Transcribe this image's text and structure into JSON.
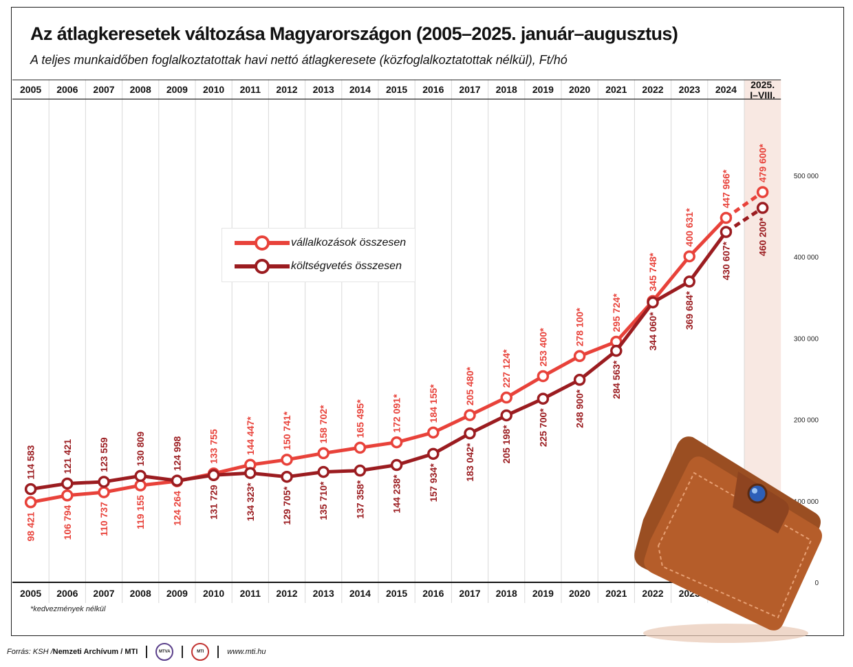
{
  "title": "Az átlagkeresetek változása Magyarországon (2005–2025. január–augusztus)",
  "subtitle": "A teljes munkaidőben foglalkoztatottak havi nettó átlagkeresete (közfoglalkoztatottak nélkül), Ft/hó",
  "footnote": "*kedvezmények nélkül",
  "footer": {
    "source_prefix": "Forrás: KSH / ",
    "source_bold": "Nemzeti Archívum / MTI",
    "logo1": "MTVA",
    "logo2": "MTI",
    "website": "www.mti.hu"
  },
  "legend": {
    "items": [
      "vállalkozások összesen",
      "költségvetés összesen"
    ]
  },
  "colors": {
    "business": "#e8423a",
    "budget": "#9b1c20",
    "highlight_band": "#f8e8e2"
  },
  "icons": [
    "wallet-illustration"
  ],
  "chart_data": {
    "type": "line",
    "categories": [
      "2005",
      "2006",
      "2007",
      "2008",
      "2009",
      "2010",
      "2011",
      "2012",
      "2013",
      "2014",
      "2015",
      "2016",
      "2017",
      "2018",
      "2019",
      "2020",
      "2021",
      "2022",
      "2023",
      "2024",
      "2025. I–VIII."
    ],
    "ylim": [
      0,
      500000
    ],
    "yticks": [
      "0",
      "100 000",
      "200 000",
      "300 000",
      "400 000",
      "500 000"
    ],
    "grid": "vertical",
    "legend_position": "upper-left",
    "series": [
      {
        "name": "vállalkozások összesen",
        "values": [
          98421,
          106794,
          110737,
          119155,
          124264,
          133755,
          144447,
          150741,
          158702,
          165495,
          172091,
          184155,
          205480,
          227124,
          253400,
          278100,
          295724,
          345748,
          400631,
          447966,
          479600
        ],
        "labels": [
          "98 421",
          "106 794",
          "110 737",
          "119 155",
          "124 264",
          "133 755",
          "144 447*",
          "150 741*",
          "158 702*",
          "165 495*",
          "172 091*",
          "184 155*",
          "205 480*",
          "227 124*",
          "253 400*",
          "278 100*",
          "295 724*",
          "345 748*",
          "400 631*",
          "447 966*",
          "479 600*"
        ]
      },
      {
        "name": "költségvetés összesen",
        "values": [
          114583,
          121421,
          123559,
          130809,
          124998,
          131729,
          134323,
          129705,
          135710,
          137358,
          144238,
          157934,
          183042,
          205198,
          225700,
          248900,
          284563,
          344060,
          369684,
          430607,
          460200
        ],
        "labels": [
          "114 583",
          "121 421",
          "123 559",
          "130 809",
          "124 998",
          "131 729",
          "134 323*",
          "129 705*",
          "135 710*",
          "137 358*",
          "144 238*",
          "157 934*",
          "183 042*",
          "205 198*",
          "225 700*",
          "248 900*",
          "284 563*",
          "344 060*",
          "369 684*",
          "430 607*",
          "460 200*"
        ]
      }
    ]
  }
}
